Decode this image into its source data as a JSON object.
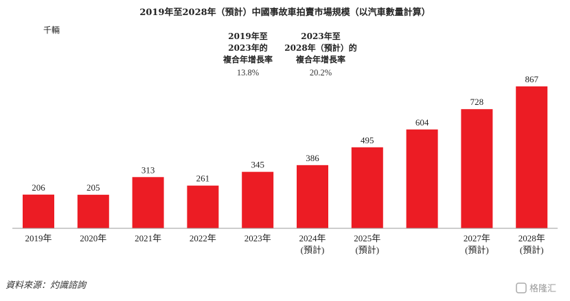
{
  "chart_data": {
    "type": "bar",
    "title": "2019年至2028年（預計）中國事故車拍賣市場規模（以汽車數量計算）",
    "unit": "千輛",
    "categories": [
      [
        "2019年"
      ],
      [
        "2020年"
      ],
      [
        "2021年"
      ],
      [
        "2022年"
      ],
      [
        "2023年"
      ],
      [
        "2024年",
        "(預計)"
      ],
      [
        "2025年",
        "(預計)"
      ],
      [
        "",
        ""
      ],
      [
        "2027年",
        "(預計)"
      ],
      [
        "2028年",
        "(預計)"
      ]
    ],
    "values": [
      206,
      205,
      313,
      261,
      345,
      386,
      495,
      604,
      728,
      867
    ],
    "data_labels": [
      "206",
      "205",
      "313",
      "261",
      "345",
      "386",
      "495",
      "604",
      "728",
      "867"
    ],
    "ylim": [
      0,
      867
    ],
    "bar_color": "#ec1c24",
    "annotations": [
      {
        "head": [
          "2019年至",
          "2023年的",
          "複合年增長率"
        ],
        "value": "13.8%"
      },
      {
        "head": [
          "2023年至",
          "2028年（預計）的",
          "複合年增長率"
        ],
        "value": "20.2%"
      }
    ],
    "grid": false,
    "legend": "none"
  },
  "source": "資料來源：灼識諮詢",
  "watermark": "格隆汇"
}
